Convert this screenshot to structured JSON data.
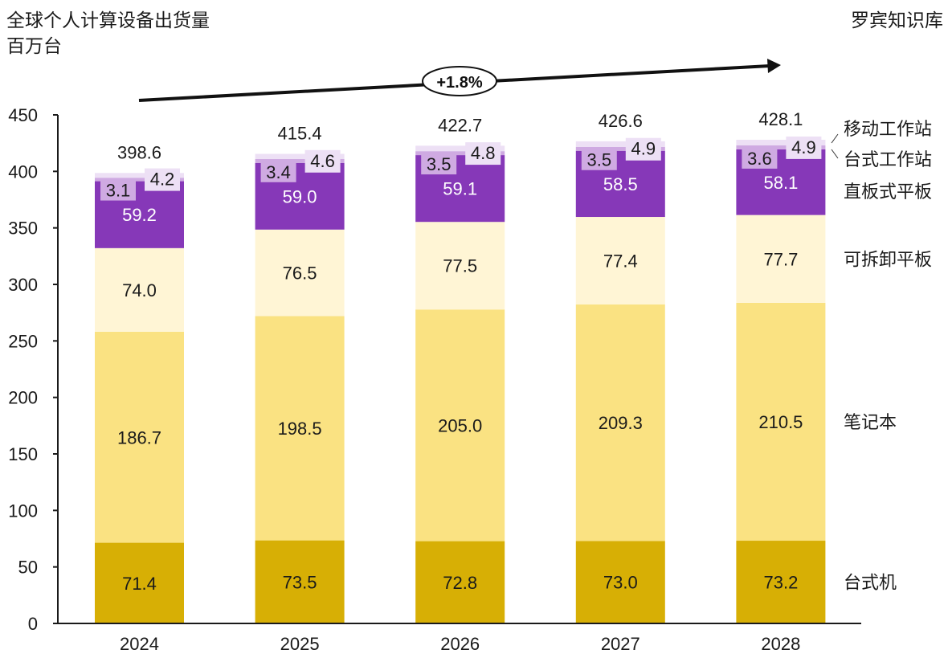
{
  "header": {
    "title_line1": "全球个人计算设备出货量",
    "title_line2": "百万台",
    "source": "罗宾知识库"
  },
  "chart_data": {
    "type": "bar",
    "stacked": true,
    "title": "全球个人计算设备出货量",
    "ylabel": "百万台",
    "xlabel": "",
    "ylim": [
      0,
      450
    ],
    "yticks": [
      0,
      50,
      100,
      150,
      200,
      250,
      300,
      350,
      400,
      450
    ],
    "grid": false,
    "categories": [
      "2024",
      "2025",
      "2026",
      "2027",
      "2028"
    ],
    "series": [
      {
        "name": "台式机",
        "color": "#D7AF05",
        "label_color": "#1a1a1a",
        "values": [
          71.4,
          73.5,
          72.8,
          73.0,
          73.2
        ]
      },
      {
        "name": "笔记本",
        "color": "#FAE282",
        "label_color": "#1a1a1a",
        "values": [
          186.7,
          198.5,
          205.0,
          209.3,
          210.5
        ]
      },
      {
        "name": "可拆卸平板",
        "color": "#FFF5D5",
        "label_color": "#1a1a1a",
        "values": [
          74.0,
          76.5,
          77.5,
          77.4,
          77.7
        ]
      },
      {
        "name": "直板式平板",
        "color": "#8638B8",
        "label_color": "#ffffff",
        "values": [
          59.2,
          59.0,
          59.1,
          58.5,
          58.1
        ]
      },
      {
        "name": "台式工作站",
        "color": "#CFAAE2",
        "label_color": "#1a1a1a",
        "values": [
          3.1,
          3.4,
          3.5,
          3.5,
          3.6
        ]
      },
      {
        "name": "移动工作站",
        "color": "#EDE0F5",
        "label_color": "#1a1a1a",
        "values": [
          4.2,
          4.6,
          4.8,
          4.9,
          4.9
        ]
      }
    ],
    "totals": [
      398.6,
      415.4,
      422.7,
      426.6,
      428.1
    ],
    "legend_position": "right",
    "annotation": {
      "text": "+1.8%",
      "meaning": "CAGR arrow from 2024 to 2028"
    }
  }
}
